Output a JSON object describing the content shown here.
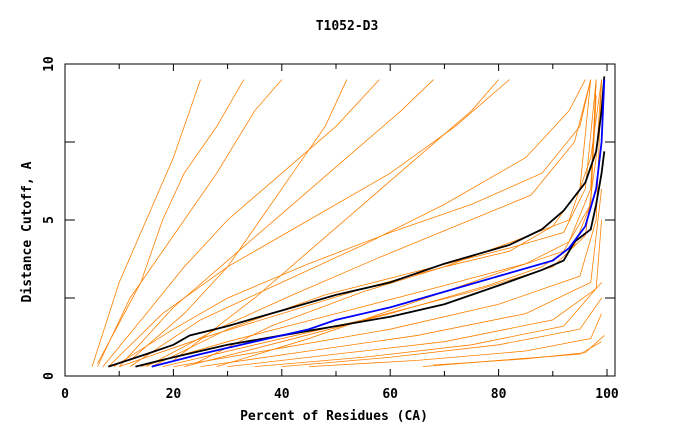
{
  "chart_data": {
    "type": "line",
    "title": "T1052-D3",
    "xlabel": "Percent of Residues (CA)",
    "ylabel": "Distance Cutoff, A",
    "xlim": [
      0,
      100
    ],
    "ylim": [
      0,
      10
    ],
    "xticks": [
      "0",
      "20",
      "40",
      "60",
      "80",
      "100"
    ],
    "yticks": [
      "0",
      "5",
      "10"
    ],
    "grid": false,
    "colors": {
      "models": "#ff8000",
      "highlight": "#0000ff",
      "reference": "#000000"
    },
    "series_black": [
      [
        [
          8,
          0.3
        ],
        [
          15,
          0.7
        ],
        [
          20,
          1
        ],
        [
          23,
          1.3
        ],
        [
          30,
          1.6
        ],
        [
          40,
          2.1
        ],
        [
          50,
          2.6
        ],
        [
          60,
          3
        ],
        [
          70,
          3.6
        ],
        [
          82,
          4.2
        ],
        [
          88,
          4.7
        ],
        [
          92,
          5.3
        ],
        [
          96,
          6.2
        ],
        [
          98,
          7.2
        ],
        [
          99,
          8.5
        ],
        [
          99.5,
          9.6
        ]
      ],
      [
        [
          13,
          0.3
        ],
        [
          20,
          0.6
        ],
        [
          30,
          1.0
        ],
        [
          40,
          1.3
        ],
        [
          50,
          1.6
        ],
        [
          60,
          1.9
        ],
        [
          70,
          2.3
        ],
        [
          80,
          2.9
        ],
        [
          88,
          3.4
        ],
        [
          92,
          3.7
        ],
        [
          94,
          4.3
        ],
        [
          97,
          4.7
        ],
        [
          98,
          5.5
        ],
        [
          99,
          6.5
        ],
        [
          99.5,
          7.2
        ]
      ]
    ],
    "series_blue": [
      [
        16,
        0.3
      ],
      [
        25,
        0.7
      ],
      [
        35,
        1.1
      ],
      [
        45,
        1.5
      ],
      [
        50,
        1.8
      ],
      [
        60,
        2.2
      ],
      [
        70,
        2.7
      ],
      [
        80,
        3.2
      ],
      [
        90,
        3.7
      ],
      [
        93,
        4.1
      ],
      [
        96,
        4.8
      ],
      [
        98,
        6
      ],
      [
        99,
        7.5
      ],
      [
        99.5,
        9.5
      ]
    ],
    "series_orange": [
      [
        [
          20,
          0.3
        ],
        [
          40,
          0.9
        ],
        [
          60,
          1.5
        ],
        [
          80,
          2.3
        ],
        [
          95,
          3.2
        ],
        [
          98,
          5
        ],
        [
          99,
          9.5
        ]
      ],
      [
        [
          25,
          0.3
        ],
        [
          45,
          0.8
        ],
        [
          65,
          1.3
        ],
        [
          85,
          2
        ],
        [
          97,
          3
        ],
        [
          99,
          6
        ]
      ],
      [
        [
          30,
          0.3
        ],
        [
          50,
          0.7
        ],
        [
          70,
          1.1
        ],
        [
          90,
          1.8
        ],
        [
          98,
          2.8
        ],
        [
          99,
          5
        ]
      ],
      [
        [
          35,
          0.3
        ],
        [
          55,
          0.6
        ],
        [
          75,
          1
        ],
        [
          92,
          1.6
        ],
        [
          99,
          3
        ]
      ],
      [
        [
          18,
          0.3
        ],
        [
          35,
          1
        ],
        [
          55,
          1.8
        ],
        [
          75,
          2.7
        ],
        [
          90,
          3.5
        ],
        [
          96,
          4.5
        ],
        [
          98,
          7
        ],
        [
          99,
          9.5
        ]
      ],
      [
        [
          14,
          0.3
        ],
        [
          30,
          1.1
        ],
        [
          50,
          2
        ],
        [
          70,
          2.9
        ],
        [
          85,
          3.6
        ],
        [
          93,
          4.3
        ],
        [
          97,
          6
        ],
        [
          98,
          9.5
        ]
      ],
      [
        [
          40,
          0.3
        ],
        [
          60,
          0.6
        ],
        [
          80,
          1
        ],
        [
          95,
          1.5
        ],
        [
          99,
          2.5
        ]
      ],
      [
        [
          45,
          0.3
        ],
        [
          65,
          0.5
        ],
        [
          85,
          0.8
        ],
        [
          97,
          1.2
        ],
        [
          99,
          2
        ]
      ],
      [
        [
          66,
          0.3
        ],
        [
          80,
          0.5
        ],
        [
          95,
          0.7
        ],
        [
          99,
          1.1
        ]
      ],
      [
        [
          68,
          0.35
        ],
        [
          85,
          0.55
        ],
        [
          96,
          0.75
        ],
        [
          99.5,
          1.3
        ]
      ],
      [
        [
          22,
          0.3
        ],
        [
          40,
          1.1
        ],
        [
          60,
          2
        ],
        [
          78,
          2.9
        ],
        [
          88,
          3.5
        ],
        [
          94,
          4.2
        ],
        [
          97,
          5.5
        ],
        [
          98,
          9.5
        ]
      ],
      [
        [
          10,
          0.3
        ],
        [
          25,
          1.2
        ],
        [
          40,
          2
        ],
        [
          55,
          2.8
        ],
        [
          70,
          3.5
        ],
        [
          82,
          4
        ],
        [
          90,
          4.8
        ],
        [
          95,
          6
        ],
        [
          97,
          9.5
        ]
      ],
      [
        [
          9,
          0.3
        ],
        [
          20,
          1.5
        ],
        [
          30,
          2.5
        ],
        [
          45,
          3.6
        ],
        [
          60,
          4.6
        ],
        [
          75,
          5.5
        ],
        [
          88,
          6.5
        ],
        [
          95,
          8
        ],
        [
          97,
          9.5
        ]
      ],
      [
        [
          7,
          0.3
        ],
        [
          15,
          2
        ],
        [
          22,
          3.5
        ],
        [
          30,
          5
        ],
        [
          40,
          6.5
        ],
        [
          50,
          8
        ],
        [
          58,
          9.5
        ]
      ],
      [
        [
          6,
          0.3
        ],
        [
          12,
          2.5
        ],
        [
          20,
          4.5
        ],
        [
          28,
          6.5
        ],
        [
          35,
          8.5
        ],
        [
          40,
          9.5
        ]
      ],
      [
        [
          5,
          0.3
        ],
        [
          10,
          3
        ],
        [
          15,
          5
        ],
        [
          20,
          7
        ],
        [
          25,
          9.5
        ]
      ],
      [
        [
          8,
          0.3
        ],
        [
          18,
          2
        ],
        [
          30,
          3.5
        ],
        [
          45,
          5
        ],
        [
          60,
          6.5
        ],
        [
          72,
          8
        ],
        [
          82,
          9.5
        ]
      ],
      [
        [
          12,
          0.3
        ],
        [
          25,
          1.8
        ],
        [
          40,
          3
        ],
        [
          55,
          4.2
        ],
        [
          70,
          5.5
        ],
        [
          85,
          7
        ],
        [
          93,
          8.5
        ],
        [
          96,
          9.5
        ]
      ],
      [
        [
          6,
          0.4
        ],
        [
          14,
          3
        ],
        [
          18,
          5
        ],
        [
          22,
          6.5
        ],
        [
          28,
          8
        ],
        [
          33,
          9.5
        ]
      ],
      [
        [
          10,
          0.3
        ],
        [
          20,
          2.2
        ],
        [
          32,
          4
        ],
        [
          42,
          5.5
        ],
        [
          52,
          7
        ],
        [
          62,
          8.5
        ],
        [
          68,
          9.5
        ]
      ],
      [
        [
          15,
          0.3
        ],
        [
          28,
          1.5
        ],
        [
          42,
          2.6
        ],
        [
          58,
          3.8
        ],
        [
          72,
          4.8
        ],
        [
          86,
          5.8
        ],
        [
          94,
          7.5
        ],
        [
          97,
          9.5
        ]
      ],
      [
        [
          20,
          0.5
        ],
        [
          35,
          2.5
        ],
        [
          45,
          4
        ],
        [
          55,
          5.5
        ],
        [
          65,
          7
        ],
        [
          75,
          8.5
        ],
        [
          80,
          9.5
        ]
      ],
      [
        [
          28,
          0.3
        ],
        [
          45,
          1.2
        ],
        [
          65,
          2.4
        ],
        [
          80,
          3.3
        ],
        [
          92,
          4
        ],
        [
          97,
          5.5
        ],
        [
          98,
          9
        ]
      ],
      [
        [
          16,
          0.3
        ],
        [
          30,
          1.5
        ],
        [
          48,
          2.6
        ],
        [
          66,
          3.4
        ],
        [
          82,
          4.1
        ],
        [
          92,
          4.6
        ],
        [
          96,
          6
        ],
        [
          98,
          9.5
        ]
      ],
      [
        [
          12,
          0.5
        ],
        [
          22,
          2
        ],
        [
          30,
          3.5
        ],
        [
          36,
          5
        ],
        [
          42,
          6.5
        ],
        [
          48,
          8
        ],
        [
          52,
          9.5
        ]
      ],
      [
        [
          24,
          0.4
        ],
        [
          38,
          1.6
        ],
        [
          55,
          2.7
        ],
        [
          70,
          3.5
        ],
        [
          84,
          4.4
        ],
        [
          93,
          5
        ],
        [
          97,
          7
        ],
        [
          99,
          9.5
        ]
      ]
    ]
  }
}
